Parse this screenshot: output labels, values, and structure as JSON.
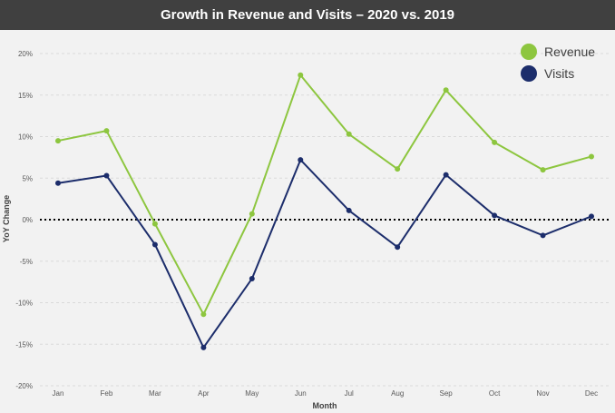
{
  "title": "Growth in Revenue and Visits – 2020 vs. 2019",
  "chart_data": {
    "type": "line",
    "title": "Growth in Revenue and Visits – 2020 vs. 2019",
    "xlabel": "Month",
    "ylabel": "YoY Change",
    "categories": [
      "Jan",
      "Feb",
      "Mar",
      "Apr",
      "May",
      "Jun",
      "Jul",
      "Aug",
      "Sep",
      "Oct",
      "Nov",
      "Dec"
    ],
    "y_ticks": [
      "20%",
      "15%",
      "10%",
      "5%",
      "0%",
      "-5%",
      "-10%",
      "-15%",
      "-20%"
    ],
    "ylim": [
      -20,
      20
    ],
    "grid": "horizontal dashed",
    "legend_position": "top-right",
    "reference_line": {
      "value": 0,
      "style": "dotted"
    },
    "series": [
      {
        "name": "Revenue",
        "color": "#8dc63f",
        "values": [
          9.5,
          10.7,
          -0.5,
          -11.4,
          0.7,
          17.4,
          10.3,
          6.1,
          15.6,
          9.3,
          6.0,
          7.6
        ]
      },
      {
        "name": "Visits",
        "color": "#1c2d6b",
        "values": [
          4.4,
          5.3,
          -3.0,
          -15.4,
          -7.1,
          7.2,
          1.1,
          -3.3,
          5.4,
          0.5,
          -1.9,
          0.4
        ]
      }
    ]
  }
}
